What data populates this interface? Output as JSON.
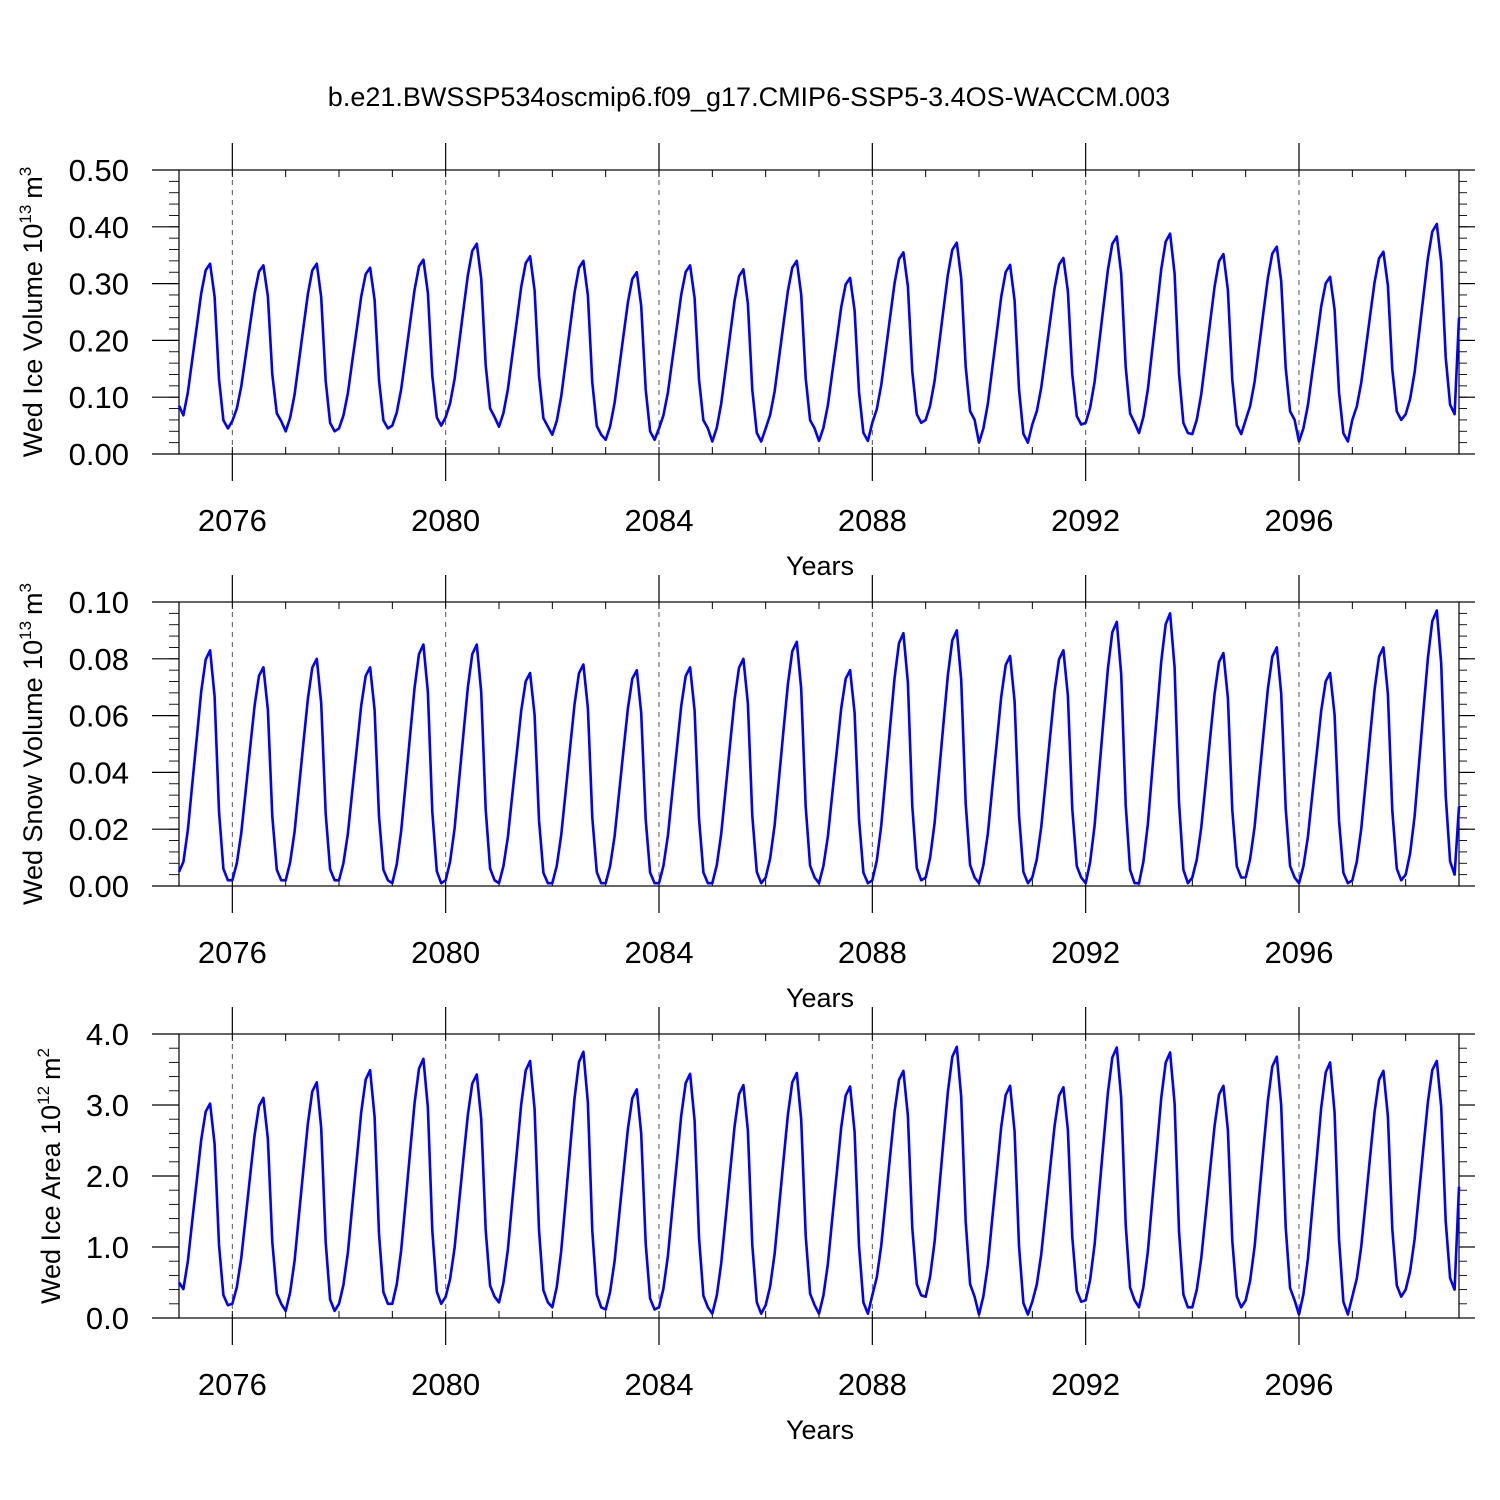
{
  "title": "b.e21.BWSSP534oscmip6.f09_g17.CMIP6-SSP5-3.4OS-WACCM.003",
  "colors": {
    "line": "#0000ff",
    "axis": "#000000",
    "grid": "#555555"
  },
  "chart_data": [
    {
      "type": "line",
      "title": "",
      "xlabel": "Years",
      "ylabel": "Wed Ice Volume 10",
      "ylabel_exp": "13",
      "ylabel_unit": "m",
      "ylabel_unit_exp": "3",
      "xlim": [
        2075.0,
        2099.0
      ],
      "ylim": [
        0.0,
        0.5
      ],
      "yticks": [
        "0.00",
        "0.10",
        "0.20",
        "0.30",
        "0.40",
        "0.50"
      ],
      "xticks": [
        "2076",
        "2080",
        "2084",
        "2088",
        "2092",
        "2096"
      ],
      "grid": "dashed vertical lines at major year ticks",
      "series": [
        {
          "peaks": [
            0.335,
            0.332,
            0.335,
            0.328,
            0.342,
            0.37,
            0.348,
            0.34,
            0.32,
            0.332,
            0.325,
            0.34,
            0.31,
            0.355,
            0.372,
            0.333,
            0.345,
            0.383,
            0.388,
            0.352,
            0.365,
            0.312,
            0.356,
            0.405
          ],
          "troughs": [
            0.045,
            0.058,
            0.04,
            0.045,
            0.05,
            0.065,
            0.048,
            0.034,
            0.025,
            0.045,
            0.022,
            0.045,
            0.023,
            0.055,
            0.06,
            0.02,
            0.052,
            0.055,
            0.037,
            0.035,
            0.06,
            0.022,
            0.06,
            0.07
          ],
          "start": 0.085,
          "end": 0.24
        }
      ]
    },
    {
      "type": "line",
      "title": "",
      "xlabel": "Years",
      "ylabel": "Wed Snow Volume 10",
      "ylabel_exp": "13",
      "ylabel_unit": "m",
      "ylabel_unit_exp": "3",
      "xlim": [
        2075.0,
        2099.0
      ],
      "ylim": [
        0.0,
        0.1
      ],
      "yticks": [
        "0.00",
        "0.02",
        "0.04",
        "0.06",
        "0.08",
        "0.10"
      ],
      "xticks": [
        "2076",
        "2080",
        "2084",
        "2088",
        "2092",
        "2096"
      ],
      "grid": "dashed vertical lines at major year ticks",
      "series": [
        {
          "peaks": [
            0.083,
            0.077,
            0.08,
            0.077,
            0.085,
            0.085,
            0.075,
            0.078,
            0.076,
            0.077,
            0.08,
            0.086,
            0.076,
            0.089,
            0.09,
            0.081,
            0.083,
            0.093,
            0.096,
            0.082,
            0.084,
            0.075,
            0.084,
            0.097
          ],
          "troughs": [
            0.002,
            0.002,
            0.002,
            0.002,
            0.001,
            0.002,
            0.001,
            0.001,
            0.001,
            0.001,
            0.001,
            0.003,
            0.001,
            0.002,
            0.003,
            0.001,
            0.003,
            0.001,
            0.001,
            0.003,
            0.003,
            0.001,
            0.002,
            0.004
          ],
          "start": 0.005,
          "end": 0.028
        }
      ]
    },
    {
      "type": "line",
      "title": "",
      "xlabel": "Years",
      "ylabel": "Wed Ice Area 10",
      "ylabel_exp": "12",
      "ylabel_unit": "m",
      "ylabel_unit_exp": "2",
      "xlim": [
        2075.0,
        2099.0
      ],
      "ylim": [
        0.0,
        4.0
      ],
      "yticks": [
        "0.0",
        "1.0",
        "2.0",
        "3.0",
        "4.0"
      ],
      "xticks": [
        "2076",
        "2080",
        "2084",
        "2088",
        "2092",
        "2096"
      ],
      "grid": "dashed vertical lines at major year ticks",
      "series": [
        {
          "peaks": [
            3.02,
            3.1,
            3.32,
            3.49,
            3.65,
            3.43,
            3.62,
            3.75,
            3.22,
            3.44,
            3.28,
            3.45,
            3.26,
            3.48,
            3.82,
            3.27,
            3.25,
            3.81,
            3.74,
            3.27,
            3.68,
            3.6,
            3.48,
            3.62
          ],
          "troughs": [
            0.18,
            0.2,
            0.1,
            0.2,
            0.2,
            0.3,
            0.22,
            0.15,
            0.12,
            0.15,
            0.06,
            0.18,
            0.06,
            0.32,
            0.3,
            0.05,
            0.23,
            0.25,
            0.15,
            0.15,
            0.25,
            0.05,
            0.3,
            0.4
          ],
          "start": 0.5,
          "end": 1.85
        }
      ]
    }
  ]
}
